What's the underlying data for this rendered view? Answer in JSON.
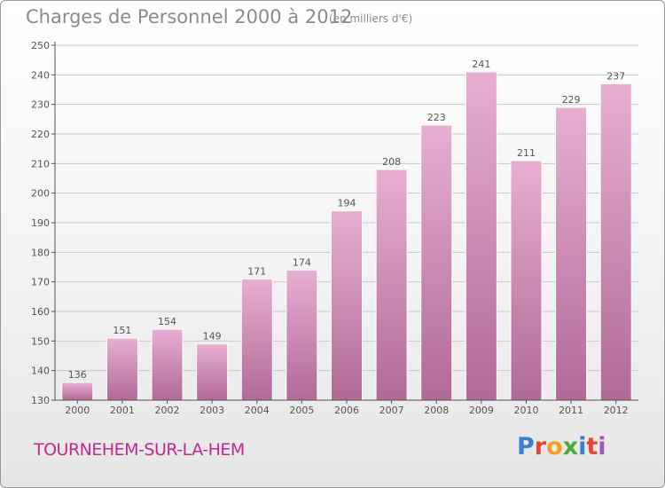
{
  "header": {
    "title": "Charges de Personnel 2000 à 2012",
    "subtitle": "(en milliers d'€)"
  },
  "footer": {
    "commune": "TOURNEHEM-SUR-LA-HEM",
    "logo_text": "Proxiti",
    "logo_colors": [
      "#3a7fd0",
      "#e8443a",
      "#f0a020",
      "#4aaa3a",
      "#3a7fd0",
      "#e8443a",
      "#9b59b6"
    ]
  },
  "colors": {
    "bar_top": "#e8aed2",
    "bar_bottom": "#b06a96",
    "axis": "#555555",
    "grid": "#c8c8c8",
    "text": "#555555"
  },
  "chart_data": {
    "type": "bar",
    "title": "Charges de Personnel 2000 à 2012",
    "subtitle": "(en milliers d'€)",
    "xlabel": "",
    "ylabel": "",
    "categories": [
      "2000",
      "2001",
      "2002",
      "2003",
      "2004",
      "2005",
      "2006",
      "2007",
      "2008",
      "2009",
      "2010",
      "2011",
      "2012"
    ],
    "values": [
      136,
      151,
      154,
      149,
      171,
      174,
      194,
      208,
      223,
      241,
      211,
      229,
      237
    ],
    "ylim": [
      130,
      250
    ],
    "yticks": [
      130,
      140,
      150,
      160,
      170,
      180,
      190,
      200,
      210,
      220,
      230,
      240,
      250
    ],
    "grid": true,
    "data_labels": true
  }
}
